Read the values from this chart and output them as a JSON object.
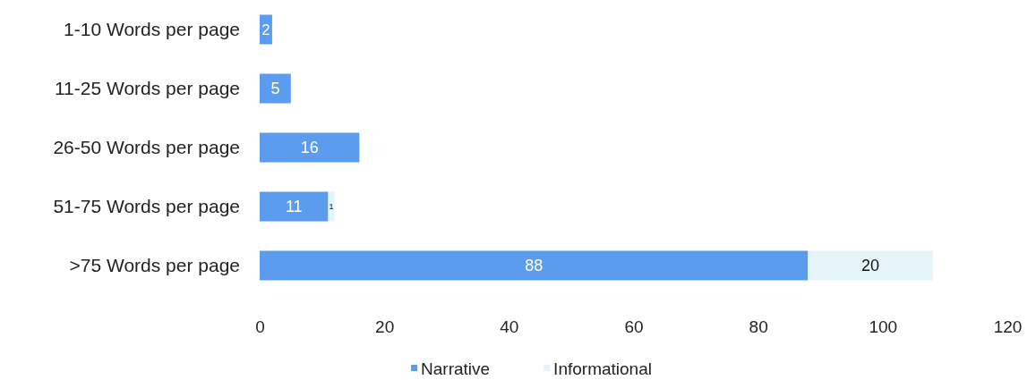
{
  "chart_data": {
    "type": "bar",
    "orientation": "horizontal",
    "stacked": true,
    "categories": [
      "1-10 Words per page",
      "11-25 Words per page",
      "26-50 Words per page",
      "51-75 Words per page",
      ">75 Words per page"
    ],
    "series": [
      {
        "name": "Narrative",
        "color": "#5b9cee",
        "values": [
          2,
          5,
          16,
          11,
          88
        ]
      },
      {
        "name": "Informational",
        "color": "#e4f4f8",
        "values": [
          null,
          null,
          null,
          1,
          20
        ]
      }
    ],
    "xlim": [
      0,
      120
    ],
    "xticks": [
      0,
      20,
      40,
      60,
      80,
      100,
      120
    ],
    "data_labels": true,
    "grid": false,
    "legend": "bottom"
  }
}
